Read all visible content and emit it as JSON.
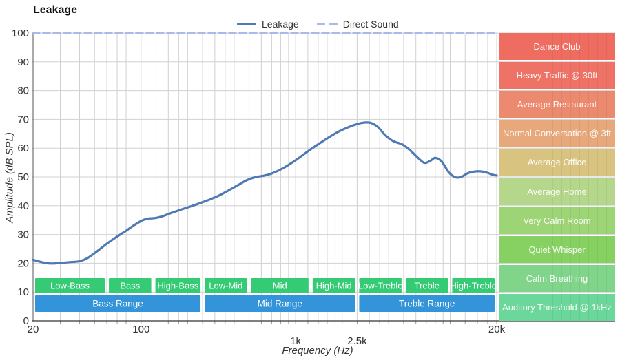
{
  "title": "Leakage",
  "legend": {
    "items": [
      {
        "label": "Leakage",
        "color": "#4e79b2",
        "style": "solid"
      },
      {
        "label": "Direct Sound",
        "color": "#abb9ea",
        "style": "dashed"
      }
    ]
  },
  "axes": {
    "y_title": "Amplitude (dB SPL)",
    "x_title": "Frequency (Hz)",
    "y_ticks": [
      0,
      10,
      20,
      30,
      40,
      50,
      60,
      70,
      80,
      90,
      100
    ],
    "x_ticks": [
      {
        "f": 20,
        "label": "20",
        "row": 1
      },
      {
        "f": 100,
        "label": "100",
        "row": 1
      },
      {
        "f": 1000,
        "label": "1k",
        "row": 2
      },
      {
        "f": 2500,
        "label": "2.5k",
        "row": 2
      },
      {
        "f": 20000,
        "label": "20k",
        "row": 1
      }
    ],
    "minor_gridlines": [
      30,
      40,
      50,
      60,
      70,
      80,
      90,
      100,
      125,
      150,
      175,
      200,
      250,
      300,
      350,
      400,
      500,
      600,
      700,
      800,
      900,
      1000,
      1200,
      1400,
      1600,
      1800,
      2000,
      2500,
      3000,
      3500,
      4000,
      5000,
      6000,
      7000,
      8000,
      9000,
      10000,
      12500,
      15000,
      17500,
      20000
    ],
    "gridline_color": "#d0d0d0",
    "axis_color": "#333333",
    "label_color": "#333333"
  },
  "chart_data": {
    "type": "line",
    "title": "Leakage",
    "x_scale": "log",
    "xlabel": "Frequency (Hz)",
    "ylabel": "Amplitude (dB SPL)",
    "xlim": [
      20,
      20000
    ],
    "ylim": [
      0,
      100
    ],
    "grid": true,
    "legend_position": "top-center",
    "series": [
      {
        "name": "Leakage",
        "style": "solid",
        "color": "#4e79b2",
        "points": [
          [
            20,
            21.2
          ],
          [
            23,
            20.3
          ],
          [
            26,
            19.9
          ],
          [
            30,
            20.1
          ],
          [
            35,
            20.4
          ],
          [
            40,
            20.7
          ],
          [
            45,
            21.8
          ],
          [
            52,
            24.2
          ],
          [
            60,
            26.8
          ],
          [
            70,
            29.3
          ],
          [
            80,
            31.3
          ],
          [
            90,
            33.2
          ],
          [
            100,
            34.7
          ],
          [
            110,
            35.5
          ],
          [
            122,
            35.7
          ],
          [
            135,
            36.2
          ],
          [
            155,
            37.4
          ],
          [
            178,
            38.5
          ],
          [
            205,
            39.6
          ],
          [
            235,
            40.7
          ],
          [
            270,
            41.9
          ],
          [
            315,
            43.4
          ],
          [
            365,
            45.2
          ],
          [
            425,
            47.2
          ],
          [
            480,
            48.8
          ],
          [
            545,
            49.9
          ],
          [
            620,
            50.4
          ],
          [
            700,
            51.2
          ],
          [
            820,
            52.9
          ],
          [
            1000,
            55.8
          ],
          [
            1250,
            59.6
          ],
          [
            1500,
            62.4
          ],
          [
            1750,
            64.7
          ],
          [
            2050,
            66.6
          ],
          [
            2350,
            67.9
          ],
          [
            2700,
            68.8
          ],
          [
            3050,
            68.8
          ],
          [
            3400,
            67.4
          ],
          [
            3800,
            64.5
          ],
          [
            4300,
            62.4
          ],
          [
            4900,
            61.3
          ],
          [
            5500,
            59.3
          ],
          [
            6200,
            56.6
          ],
          [
            6800,
            54.9
          ],
          [
            7400,
            55.5
          ],
          [
            8000,
            56.6
          ],
          [
            8800,
            55.4
          ],
          [
            9800,
            51.6
          ],
          [
            10800,
            49.9
          ],
          [
            11800,
            50.0
          ],
          [
            13000,
            51.3
          ],
          [
            14500,
            51.9
          ],
          [
            16000,
            51.9
          ],
          [
            17500,
            51.4
          ],
          [
            19000,
            50.7
          ],
          [
            20000,
            50.5
          ]
        ]
      },
      {
        "name": "Direct Sound",
        "style": "dashed",
        "color": "#abb9ea",
        "points": [
          [
            20,
            100
          ],
          [
            20000,
            100
          ]
        ]
      }
    ]
  },
  "frequency_bands": {
    "sub_bands": {
      "color": "#35cb75",
      "text_color": "#ffffff",
      "items": [
        {
          "label": "Low-Bass",
          "from": 20,
          "to": 60
        },
        {
          "label": "Bass",
          "from": 60,
          "to": 120
        },
        {
          "label": "High-Bass",
          "from": 120,
          "to": 250
        },
        {
          "label": "Low-Mid",
          "from": 250,
          "to": 500
        },
        {
          "label": "Mid",
          "from": 500,
          "to": 1250
        },
        {
          "label": "High-Mid",
          "from": 1250,
          "to": 2500
        },
        {
          "label": "Low-Treble",
          "from": 2500,
          "to": 5000
        },
        {
          "label": "Treble",
          "from": 5000,
          "to": 10000
        },
        {
          "label": "High-Treble",
          "from": 10000,
          "to": 20000
        }
      ]
    },
    "range_bands": {
      "color": "#3494da",
      "text_color": "#ffffff",
      "items": [
        {
          "label": "Bass Range",
          "from": 20,
          "to": 250
        },
        {
          "label": "Mid Range",
          "from": 250,
          "to": 2500
        },
        {
          "label": "Treble Range",
          "from": 2500,
          "to": 20000
        }
      ]
    }
  },
  "noise_levels": {
    "text_color": "#ffffff",
    "items": [
      {
        "label": "Dance Club",
        "color": "#ee6d60"
      },
      {
        "label": "Heavy Traffic @ 30ft",
        "color": "#ee7366"
      },
      {
        "label": "Average Restaurant",
        "color": "#ec8a70"
      },
      {
        "label": "Normal Conversation @ 3ft",
        "color": "#e7a87c"
      },
      {
        "label": "Average Office",
        "color": "#d8c480"
      },
      {
        "label": "Average Home",
        "color": "#b5d78c"
      },
      {
        "label": "Very Calm Room",
        "color": "#9dd476"
      },
      {
        "label": "Quiet Whisper",
        "color": "#87d163"
      },
      {
        "label": "Calm Breathing",
        "color": "#81d58b"
      },
      {
        "label": "Auditory Threshold @ 1kHz",
        "color": "#6cd79b"
      }
    ]
  }
}
